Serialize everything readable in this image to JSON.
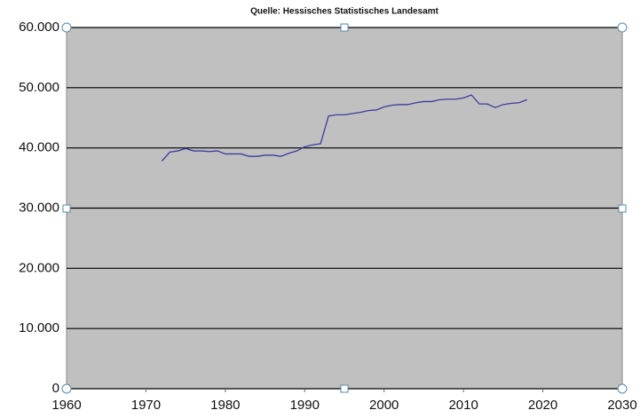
{
  "chart_data": {
    "type": "line",
    "title": "Quelle: Hessisches Statistisches Landesamt",
    "x": [
      1972,
      1973,
      1974,
      1975,
      1976,
      1977,
      1978,
      1979,
      1980,
      1981,
      1982,
      1983,
      1984,
      1985,
      1986,
      1987,
      1988,
      1989,
      1990,
      1991,
      1992,
      1993,
      1994,
      1995,
      1996,
      1997,
      1998,
      1999,
      2000,
      2001,
      2002,
      2003,
      2004,
      2005,
      2006,
      2007,
      2008,
      2009,
      2010,
      2011,
      2012,
      2013,
      2014,
      2015,
      2016,
      2017,
      2018
    ],
    "values": [
      37800,
      39300,
      39500,
      39900,
      39500,
      39500,
      39400,
      39500,
      39000,
      39000,
      39000,
      38600,
      38600,
      38800,
      38800,
      38600,
      39100,
      39500,
      40200,
      40500,
      40700,
      45300,
      45500,
      45500,
      45700,
      45900,
      46200,
      46300,
      46800,
      47100,
      47200,
      47200,
      47500,
      47700,
      47700,
      48000,
      48100,
      48100,
      48300,
      48800,
      47300,
      47300,
      46700,
      47200,
      47400,
      47500,
      48000
    ],
    "color": "#3c3ca0",
    "xlim": [
      1960,
      2030
    ],
    "xticks": [
      1960,
      1970,
      1980,
      1990,
      2000,
      2010,
      2020,
      2030
    ],
    "ylim": [
      0,
      60000
    ],
    "yticks": [
      0,
      {
        "value": 10000,
        "label": "10.000"
      },
      {
        "value": 20000,
        "label": "20.000"
      },
      {
        "value": 30000,
        "label": "30.000"
      },
      {
        "value": 40000,
        "label": "40.000"
      },
      {
        "value": 50000,
        "label": "50.000"
      },
      {
        "value": 60000,
        "label": "60.000"
      }
    ],
    "grid": true
  }
}
